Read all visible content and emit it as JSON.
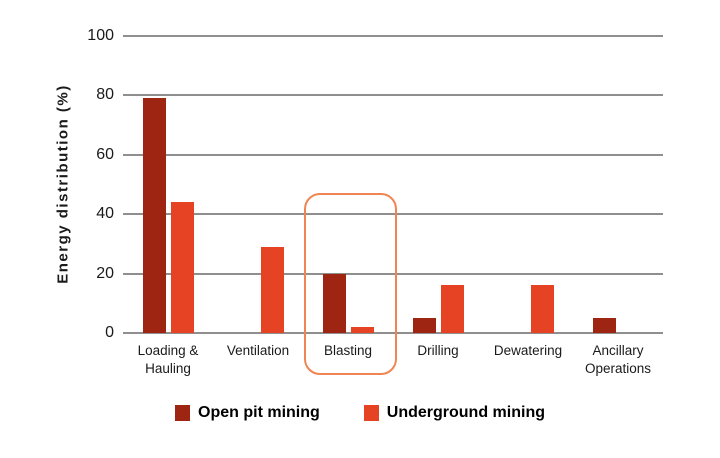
{
  "chart_data": {
    "type": "bar",
    "title": "",
    "xlabel": "",
    "ylabel": "Energy distribution (%)",
    "ylim": [
      0,
      100
    ],
    "yticks": [
      0,
      20,
      40,
      60,
      80,
      100
    ],
    "grid": true,
    "legend_position": "bottom",
    "categories": [
      "Loading & Hauling",
      "Ventilation",
      "Blasting",
      "Drilling",
      "Dewatering",
      "Ancillary Operations"
    ],
    "series": [
      {
        "name": "Open pit mining",
        "color": "#9E2512",
        "values": [
          79,
          0,
          20,
          5,
          0,
          5
        ]
      },
      {
        "name": "Underground mining",
        "color": "#E64325",
        "values": [
          44,
          29,
          2,
          16,
          16,
          0
        ]
      }
    ],
    "highlight": {
      "category": "Blasting",
      "border_color": "#F08553"
    }
  },
  "colors": {
    "gridline": "#8F8F8F",
    "text": "#1A1A1A"
  }
}
